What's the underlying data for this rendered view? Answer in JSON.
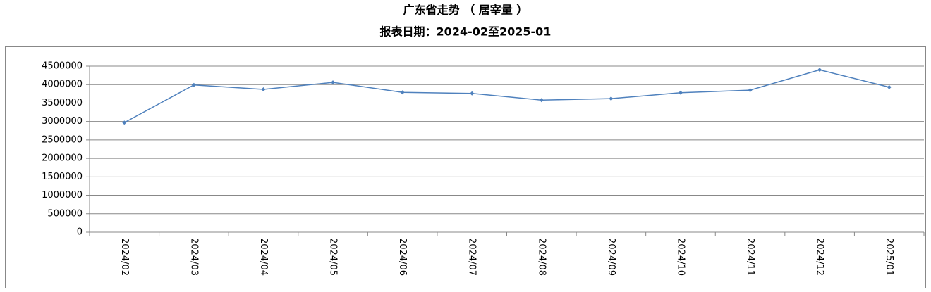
{
  "chart_data": {
    "type": "line",
    "title": "广东省走势 （ 居宰量 ）",
    "subtitle": "报表日期：2024-02至2025-01",
    "categories": [
      "2024/02",
      "2024/03",
      "2024/04",
      "2024/05",
      "2024/06",
      "2024/07",
      "2024/08",
      "2024/09",
      "2024/10",
      "2024/11",
      "2024/12",
      "2025/01"
    ],
    "values": [
      2970000,
      3990000,
      3870000,
      4060000,
      3790000,
      3760000,
      3580000,
      3620000,
      3780000,
      3850000,
      4400000,
      3930000
    ],
    "color": "#4f81bd",
    "ylim": [
      0,
      4500000
    ],
    "yticks": [
      0,
      500000,
      1000000,
      1500000,
      2000000,
      2500000,
      3000000,
      3500000,
      4000000,
      4500000
    ],
    "grid": true
  }
}
